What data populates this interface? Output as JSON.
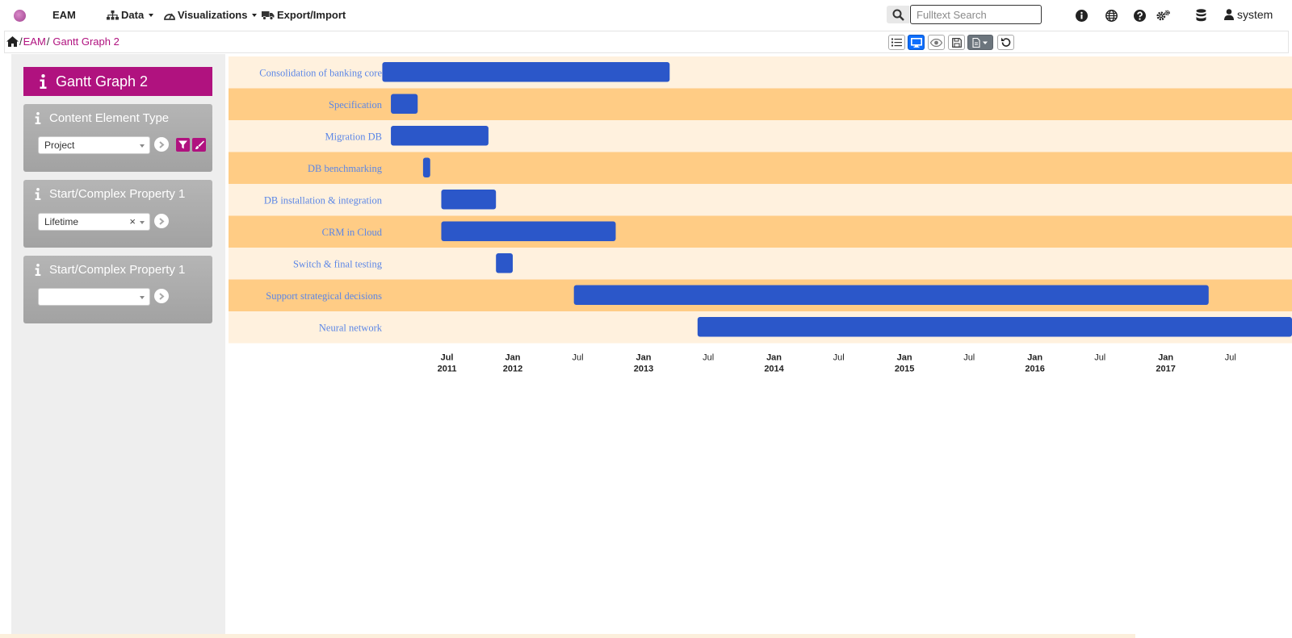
{
  "topbar": {
    "brand": "EAM",
    "menus": [
      {
        "label": "Data",
        "icon": "sitemap-icon",
        "caret": true
      },
      {
        "label": "Visualizations",
        "icon": "dashboard-icon",
        "caret": true
      },
      {
        "label": "Export/Import",
        "icon": "truck-icon",
        "caret": false
      }
    ],
    "search_placeholder": "Fulltext Search",
    "search_value": "",
    "icons": [
      "info-icon",
      "globe-icon",
      "help-icon",
      "settings-icon",
      "database-icon"
    ],
    "user": "system"
  },
  "breadcrumb": {
    "items": [
      "EAM",
      "Gantt Graph 2"
    ]
  },
  "toolbar": {
    "buttons": [
      "list-view-icon",
      "desktop-view-icon",
      "preview-icon",
      "save-icon",
      "document-menu-icon",
      "undo-icon"
    ],
    "active": "desktop-view-icon"
  },
  "sidebar": {
    "title": "Gantt Graph 2",
    "cards": [
      {
        "title": "Content Element Type",
        "select": "Project",
        "clearable": false
      },
      {
        "title": "Start/Complex Property 1",
        "select": "Lifetime",
        "clearable": true
      },
      {
        "title": "Start/Complex Property 1",
        "select": "",
        "clearable": false
      }
    ]
  },
  "colors": {
    "accent": "#b0127f",
    "bar": "#2b57c9",
    "band_dark": "#ffcc85",
    "band_light": "#fff1de",
    "label": "#5b86e6"
  },
  "chart_data": {
    "type": "gantt",
    "tasks": [
      {
        "name": "Consolidation of banking core",
        "start": "2011-01-01",
        "end": "2013-03-15"
      },
      {
        "name": "Specification",
        "start": "2011-01-25",
        "end": "2011-04-10"
      },
      {
        "name": "Migration DB",
        "start": "2011-01-25",
        "end": "2011-10-25"
      },
      {
        "name": "DB benchmarking",
        "start": "2011-04-25",
        "end": "2011-05-15"
      },
      {
        "name": "DB installation & integration",
        "start": "2011-06-15",
        "end": "2011-11-15"
      },
      {
        "name": "CRM in Cloud",
        "start": "2011-06-15",
        "end": "2012-10-15"
      },
      {
        "name": "Switch & final testing",
        "start": "2011-11-15",
        "end": "2012-01-01"
      },
      {
        "name": "Support strategical decisions",
        "start": "2012-06-20",
        "end": "2017-05-01"
      },
      {
        "name": "Neural network",
        "start": "2013-06-01",
        "end": "2018-01-01"
      }
    ],
    "ticks": [
      {
        "date": "2011-07-01",
        "line1": "Jul",
        "line2": "2011"
      },
      {
        "date": "2012-01-01",
        "line1": "Jan",
        "line2": "2012"
      },
      {
        "date": "2012-07-01",
        "line1": "Jul",
        "line2": ""
      },
      {
        "date": "2013-01-01",
        "line1": "Jan",
        "line2": "2013"
      },
      {
        "date": "2013-07-01",
        "line1": "Jul",
        "line2": ""
      },
      {
        "date": "2014-01-01",
        "line1": "Jan",
        "line2": "2014"
      },
      {
        "date": "2014-07-01",
        "line1": "Jul",
        "line2": ""
      },
      {
        "date": "2015-01-01",
        "line1": "Jan",
        "line2": "2015"
      },
      {
        "date": "2015-07-01",
        "line1": "Jul",
        "line2": ""
      },
      {
        "date": "2016-01-01",
        "line1": "Jan",
        "line2": "2016"
      },
      {
        "date": "2016-07-01",
        "line1": "Jul",
        "line2": ""
      },
      {
        "date": "2017-01-01",
        "line1": "Jan",
        "line2": "2017"
      },
      {
        "date": "2017-07-01",
        "line1": "Jul",
        "line2": ""
      }
    ],
    "xrange": [
      "2011-01-01",
      "2018-01-01"
    ]
  }
}
